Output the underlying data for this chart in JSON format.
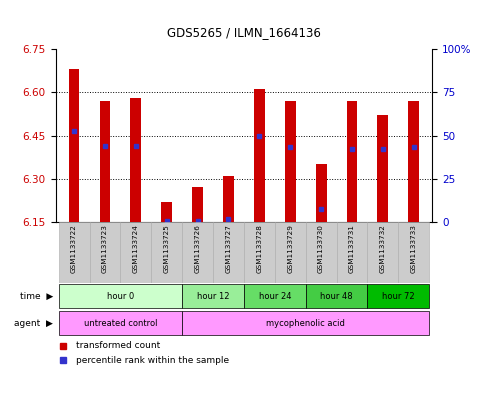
{
  "title": "GDS5265 / ILMN_1664136",
  "samples": [
    "GSM1133722",
    "GSM1133723",
    "GSM1133724",
    "GSM1133725",
    "GSM1133726",
    "GSM1133727",
    "GSM1133728",
    "GSM1133729",
    "GSM1133730",
    "GSM1133731",
    "GSM1133732",
    "GSM1133733"
  ],
  "bar_top": [
    6.68,
    6.57,
    6.58,
    6.22,
    6.27,
    6.31,
    6.61,
    6.57,
    6.35,
    6.57,
    6.52,
    6.57
  ],
  "bar_bottom": 6.15,
  "blue_val": [
    6.465,
    6.415,
    6.415,
    6.155,
    6.155,
    6.16,
    6.45,
    6.41,
    6.195,
    6.405,
    6.405,
    6.41
  ],
  "ylim_left": [
    6.15,
    6.75
  ],
  "ylim_right": [
    0,
    100
  ],
  "yticks_left": [
    6.15,
    6.3,
    6.45,
    6.6,
    6.75
  ],
  "yticks_right": [
    0,
    25,
    50,
    75,
    100
  ],
  "ytick_labels_right": [
    "0",
    "25",
    "50",
    "75",
    "100%"
  ],
  "bar_color": "#cc0000",
  "blue_color": "#3333cc",
  "time_colors": [
    "#ccffcc",
    "#99ee99",
    "#66dd66",
    "#44cc44",
    "#00bb00"
  ],
  "time_groups": [
    {
      "label": "hour 0",
      "start": 0,
      "end": 3
    },
    {
      "label": "hour 12",
      "start": 4,
      "end": 5
    },
    {
      "label": "hour 24",
      "start": 6,
      "end": 7
    },
    {
      "label": "hour 48",
      "start": 8,
      "end": 9
    },
    {
      "label": "hour 72",
      "start": 10,
      "end": 11
    }
  ],
  "agent_groups": [
    {
      "label": "untreated control",
      "start": 0,
      "end": 3,
      "color": "#ff99ff"
    },
    {
      "label": "mycophenolic acid",
      "start": 4,
      "end": 11,
      "color": "#ff99ff"
    }
  ],
  "legend1": "transformed count",
  "legend2": "percentile rank within the sample",
  "bar_color_label": "#cc0000",
  "right_axis_color": "#0000cc",
  "left_axis_color": "#cc0000",
  "sample_bg_color": "#cccccc",
  "bar_width": 0.35
}
